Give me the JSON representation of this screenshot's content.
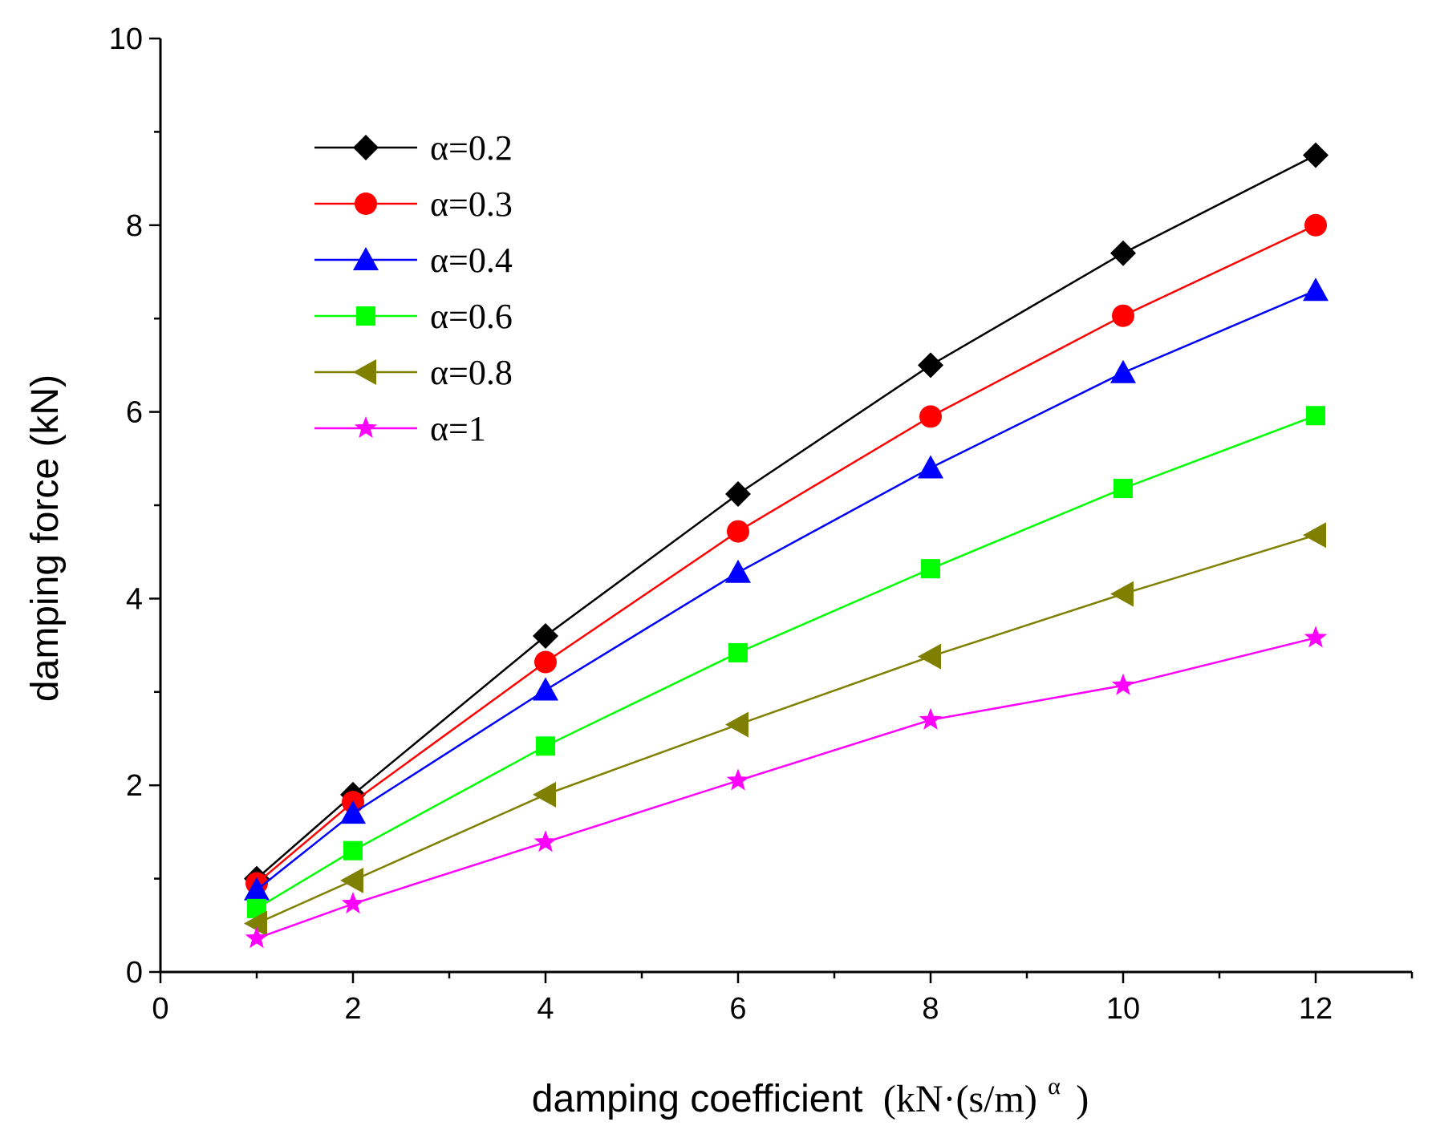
{
  "chart_data": {
    "type": "line",
    "title": "",
    "xlabel_main": "damping coefficient",
    "xlabel_unit": "(kN·(s/m)",
    "xlabel_sup": "α",
    "xlabel_close": ")",
    "ylabel": "damping force (kN)",
    "xlim": [
      0,
      13
    ],
    "ylim": [
      0,
      10
    ],
    "x_ticks": [
      0,
      2,
      4,
      6,
      8,
      10,
      12
    ],
    "y_ticks": [
      0,
      2,
      4,
      6,
      8,
      10
    ],
    "x": [
      1,
      2,
      4,
      6,
      8,
      10,
      12
    ],
    "legend_position": "top-left",
    "grid": false,
    "series": [
      {
        "name": "α=0.2",
        "color": "#000000",
        "marker": "diamond",
        "values": [
          1.0,
          1.9,
          3.6,
          5.12,
          6.5,
          7.7,
          8.75
        ]
      },
      {
        "name": "α=0.3",
        "color": "#ff0000",
        "marker": "circle",
        "values": [
          0.95,
          1.82,
          3.32,
          4.72,
          5.95,
          7.03,
          8.0
        ]
      },
      {
        "name": "α=0.4",
        "color": "#0000ff",
        "marker": "triangle-up",
        "values": [
          0.88,
          1.7,
          3.02,
          4.28,
          5.4,
          6.42,
          7.3
        ]
      },
      {
        "name": "α=0.6",
        "color": "#00ff00",
        "marker": "square",
        "values": [
          0.68,
          1.3,
          2.42,
          3.42,
          4.32,
          5.18,
          5.96
        ]
      },
      {
        "name": "α=0.8",
        "color": "#808000",
        "marker": "triangle-left",
        "values": [
          0.52,
          0.98,
          1.9,
          2.65,
          3.38,
          4.05,
          4.68
        ]
      },
      {
        "name": "α=1",
        "color": "#ff00ff",
        "marker": "star",
        "values": [
          0.36,
          0.73,
          1.39,
          2.05,
          2.7,
          3.07,
          3.58
        ]
      }
    ]
  }
}
